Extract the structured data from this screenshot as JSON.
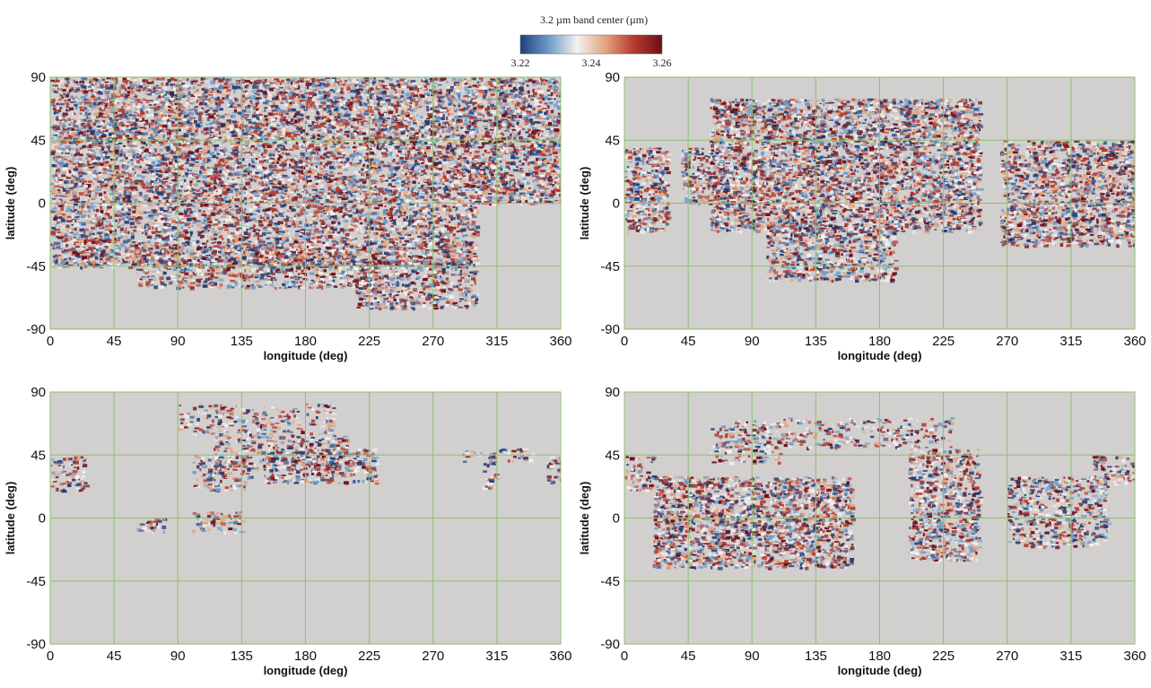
{
  "colorbar": {
    "title": "3.2 µm band center (µm)",
    "ticks": [
      "3.22",
      "3.24",
      "3.26"
    ],
    "range": [
      3.22,
      3.26
    ],
    "colors": [
      "#1f3f7a",
      "#6d9cc9",
      "#f4f1ee",
      "#e4a47f",
      "#b53a2e",
      "#6b0f1a"
    ]
  },
  "chart_data": [
    {
      "type": "heatmap",
      "panel": "top-left",
      "xlabel": "longitude (deg)",
      "ylabel": "latitude (deg)",
      "xlim": [
        0,
        360
      ],
      "ylim": [
        -90,
        90
      ],
      "xticks": [
        "0",
        "45",
        "90",
        "135",
        "180",
        "225",
        "270",
        "315",
        "360"
      ],
      "yticks": [
        "90",
        "45",
        "0",
        "-45",
        "-90"
      ],
      "grid": true,
      "background_color": "#d2cfcf",
      "grid_color": "#8cbf6e"
    },
    {
      "type": "heatmap",
      "panel": "top-right",
      "xlabel": "longitude (deg)",
      "ylabel": "latitude (deg)",
      "xlim": [
        0,
        360
      ],
      "ylim": [
        -90,
        90
      ],
      "xticks": [
        "0",
        "45",
        "90",
        "135",
        "180",
        "225",
        "270",
        "315",
        "360"
      ],
      "yticks": [
        "90",
        "45",
        "0",
        "-45",
        "-90"
      ],
      "grid": true,
      "background_color": "#d2cfcf",
      "grid_color": "#8cbf6e"
    },
    {
      "type": "heatmap",
      "panel": "bottom-left",
      "xlabel": "longitude (deg)",
      "ylabel": "latitude (deg)",
      "xlim": [
        0,
        360
      ],
      "ylim": [
        -90,
        90
      ],
      "xticks": [
        "0",
        "45",
        "90",
        "135",
        "180",
        "225",
        "270",
        "315",
        "360"
      ],
      "yticks": [
        "90",
        "45",
        "0",
        "-45",
        "-90"
      ],
      "grid": true,
      "background_color": "#d2cfcf",
      "grid_color": "#8cbf6e"
    },
    {
      "type": "heatmap",
      "panel": "bottom-right",
      "xlabel": "longitude (deg)",
      "ylabel": "latitude (deg)",
      "xlim": [
        0,
        360
      ],
      "ylim": [
        -90,
        90
      ],
      "xticks": [
        "0",
        "45",
        "90",
        "135",
        "180",
        "225",
        "270",
        "315",
        "360"
      ],
      "yticks": [
        "90",
        "45",
        "0",
        "-45",
        "-90"
      ],
      "grid": true,
      "background_color": "#d2cfcf",
      "grid_color": "#8cbf6e"
    }
  ]
}
